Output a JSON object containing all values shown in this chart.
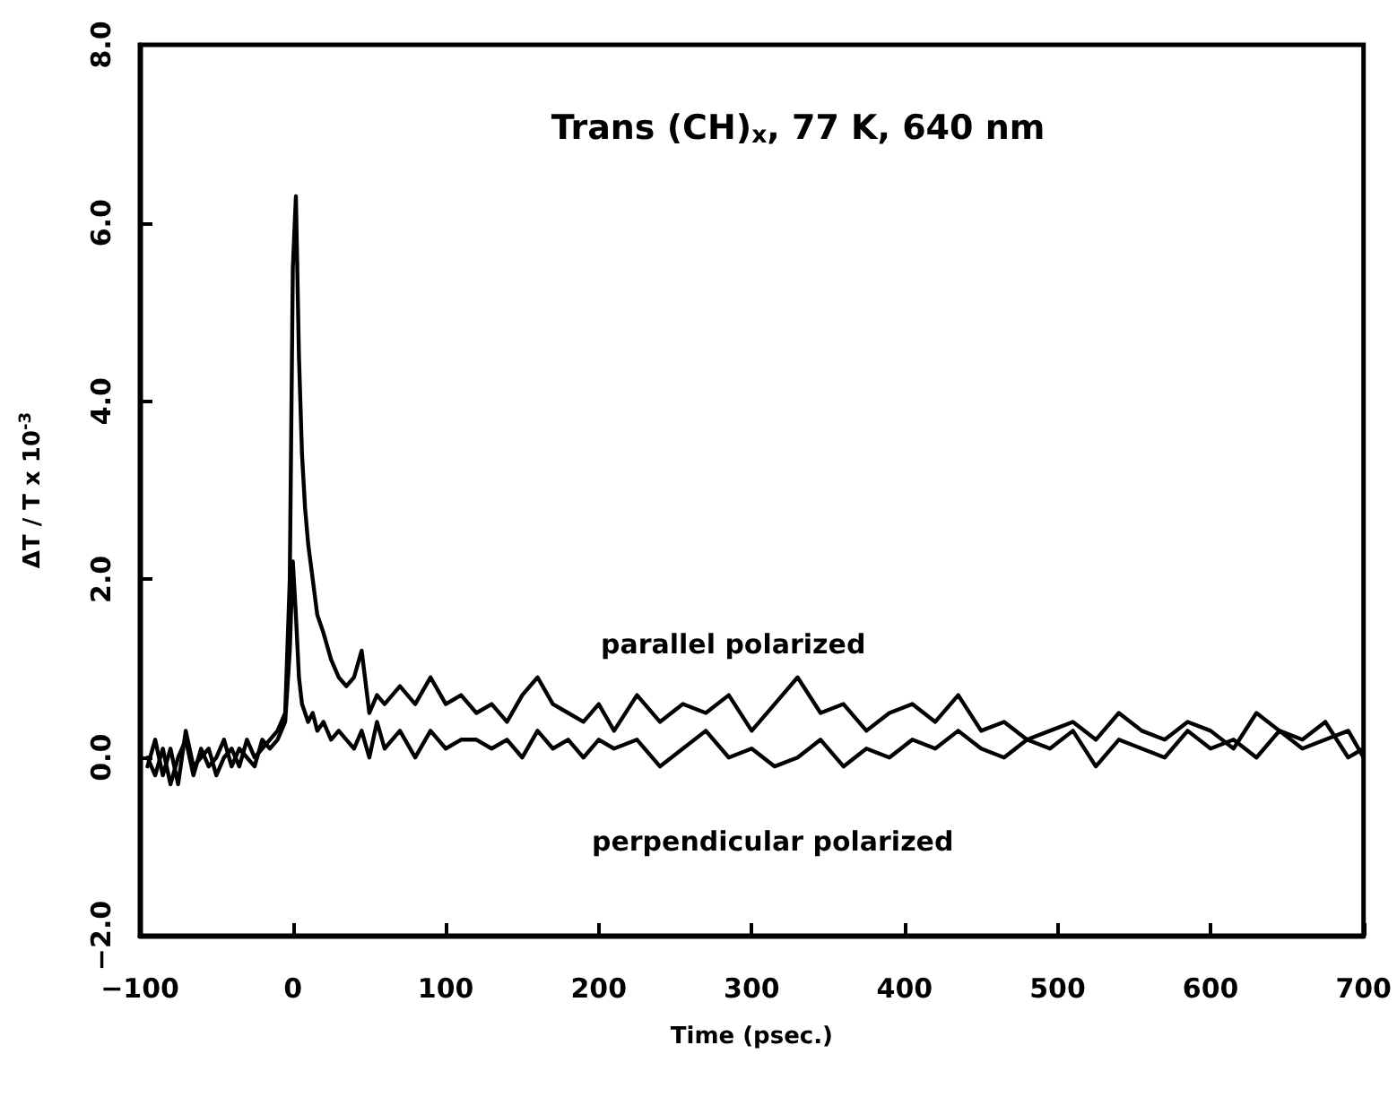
{
  "chart_data": {
    "type": "line",
    "title": "Trans (CH)$_{x}$, 77 K, 640 nm",
    "xlabel": "Time (psec.)",
    "ylabel": "ΔT / T x 10$^{-3}$",
    "x": [
      -95,
      -90,
      -85,
      -80,
      -75,
      -70,
      -65,
      -60,
      -55,
      -50,
      -45,
      -40,
      -35,
      -30,
      -25,
      -20,
      -15,
      -10,
      -5,
      -2,
      0,
      2,
      4,
      6,
      8,
      10,
      13,
      16,
      20,
      25,
      30,
      35,
      40,
      45,
      50,
      55,
      60,
      70,
      80,
      90,
      100,
      110,
      120,
      130,
      140,
      150,
      160,
      170,
      180,
      190,
      200,
      210,
      225,
      240,
      255,
      270,
      285,
      300,
      315,
      330,
      345,
      360,
      375,
      390,
      405,
      420,
      435,
      450,
      465,
      480,
      495,
      510,
      525,
      540,
      555,
      570,
      585,
      600,
      615,
      630,
      645,
      660,
      675,
      690,
      700
    ],
    "series": [
      {
        "name": "parallel polarized",
        "color": "#000000",
        "values": [
          -0.1,
          0.2,
          -0.2,
          0.1,
          -0.3,
          0.3,
          -0.1,
          0.0,
          0.1,
          -0.2,
          0.0,
          0.1,
          -0.1,
          0.2,
          0.0,
          0.1,
          0.2,
          0.3,
          0.5,
          2.0,
          5.5,
          6.3,
          4.5,
          3.4,
          2.8,
          2.4,
          2.0,
          1.6,
          1.4,
          1.1,
          0.9,
          0.8,
          0.9,
          1.2,
          0.5,
          0.7,
          0.6,
          0.8,
          0.6,
          0.9,
          0.6,
          0.7,
          0.5,
          0.6,
          0.4,
          0.7,
          0.9,
          0.6,
          0.5,
          0.4,
          0.6,
          0.3,
          0.7,
          0.4,
          0.6,
          0.5,
          0.7,
          0.3,
          0.6,
          0.9,
          0.5,
          0.6,
          0.3,
          0.5,
          0.6,
          0.4,
          0.7,
          0.3,
          0.4,
          0.2,
          0.3,
          0.4,
          0.2,
          0.5,
          0.3,
          0.2,
          0.4,
          0.3,
          0.1,
          0.5,
          0.3,
          0.2,
          0.4,
          0.0,
          0.1
        ]
      },
      {
        "name": "perpendicular polarized",
        "color": "#000000",
        "values": [
          0.0,
          -0.2,
          0.1,
          -0.3,
          0.0,
          0.2,
          -0.2,
          0.1,
          -0.1,
          0.0,
          0.2,
          -0.1,
          0.1,
          0.0,
          -0.1,
          0.2,
          0.1,
          0.2,
          0.4,
          1.2,
          2.2,
          1.6,
          0.9,
          0.6,
          0.5,
          0.4,
          0.5,
          0.3,
          0.4,
          0.2,
          0.3,
          0.2,
          0.1,
          0.3,
          0.0,
          0.4,
          0.1,
          0.3,
          0.0,
          0.3,
          0.1,
          0.2,
          0.2,
          0.1,
          0.2,
          0.0,
          0.3,
          0.1,
          0.2,
          0.0,
          0.2,
          0.1,
          0.2,
          -0.1,
          0.1,
          0.3,
          0.0,
          0.1,
          -0.1,
          0.0,
          0.2,
          -0.1,
          0.1,
          0.0,
          0.2,
          0.1,
          0.3,
          0.1,
          0.0,
          0.2,
          0.1,
          0.3,
          -0.1,
          0.2,
          0.1,
          0.0,
          0.3,
          0.1,
          0.2,
          0.0,
          0.3,
          0.1,
          0.2,
          0.3,
          0.0
        ]
      }
    ],
    "xlim": [
      -100,
      700
    ],
    "xticks": [
      {
        "value": -100,
        "label": "−100"
      },
      0,
      100,
      200,
      300,
      400,
      500,
      600,
      700
    ],
    "ylim": [
      -2,
      8
    ],
    "yticks": [
      {
        "value": -2,
        "label": "−2.0"
      },
      {
        "value": 0,
        "label": "0.0"
      },
      {
        "value": 2,
        "label": "2.0"
      },
      {
        "value": 4,
        "label": "4.0"
      },
      {
        "value": 6,
        "label": "6.0"
      },
      {
        "value": 8,
        "label": "8.0"
      }
    ],
    "grid": false,
    "legend": false,
    "marker": "none",
    "line_style": "solid"
  }
}
